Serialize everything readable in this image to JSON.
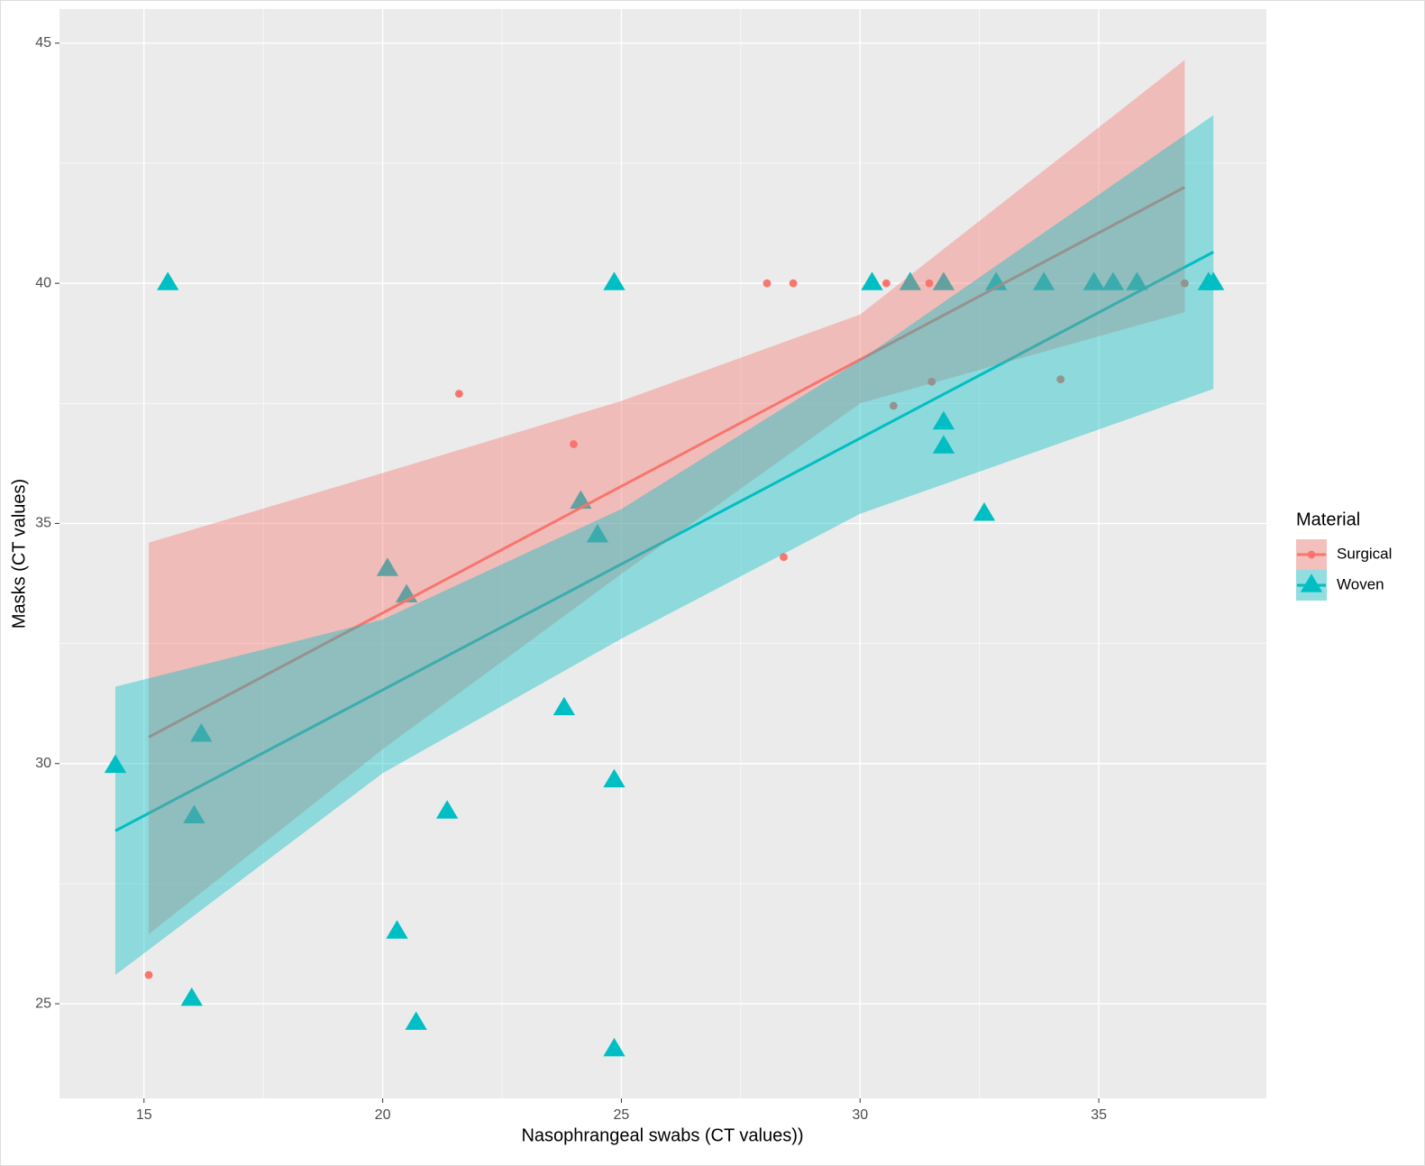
{
  "chart_data": {
    "type": "scatter",
    "x_label": "Nasophrangeal swabs (CT values))",
    "y_label": "Masks (CT values)",
    "legend_title": "Material",
    "legend": "right",
    "grid": true,
    "xlim": [
      13.23,
      38.51
    ],
    "ylim": [
      23.03,
      45.71
    ],
    "xticks": [
      15,
      20,
      25,
      30,
      35
    ],
    "yticks": [
      25,
      30,
      35,
      40,
      45
    ],
    "series": [
      {
        "name": "Surgical",
        "color": "#F8766D",
        "shape": "circle",
        "x": [
          15.1,
          21.6,
          24.0,
          28.05,
          28.6,
          28.4,
          30.55,
          31.45,
          31.75,
          30.7,
          31.5,
          34.2,
          36.8
        ],
        "y": [
          25.6,
          37.7,
          36.65,
          40,
          40,
          34.3,
          40,
          40,
          40,
          37.45,
          37.95,
          38.0,
          40
        ],
        "fit": {
          "x": [
            15.1,
            36.8
          ],
          "y": [
            30.55,
            42.0
          ]
        },
        "band": {
          "x": [
            15.1,
            20,
            25,
            30,
            36.8
          ],
          "lower": [
            26.45,
            30.3,
            33.95,
            37.5,
            39.4
          ],
          "upper": [
            34.6,
            36.05,
            37.55,
            39.35,
            44.65
          ]
        }
      },
      {
        "name": "Woven",
        "color": "#00BFC4",
        "shape": "triangle",
        "x": [
          14.4,
          15.5,
          16.2,
          16.05,
          16.0,
          20.1,
          20.5,
          20.3,
          20.7,
          21.35,
          23.8,
          24.15,
          24.5,
          24.85,
          24.85,
          24.85,
          30.25,
          31.05,
          31.75,
          31.75,
          31.75,
          32.6,
          32.85,
          33.85,
          34.9,
          35.3,
          35.8,
          37.3,
          37.4
        ],
        "y": [
          29.95,
          40,
          30.6,
          28.9,
          25.1,
          34.05,
          33.5,
          26.5,
          24.6,
          29.0,
          31.15,
          35.45,
          34.75,
          40,
          29.65,
          24.05,
          40,
          40,
          40,
          37.1,
          36.6,
          35.2,
          40,
          40,
          40,
          40,
          40,
          40,
          40
        ],
        "fit": {
          "x": [
            14.4,
            37.4
          ],
          "y": [
            28.6,
            40.65
          ]
        },
        "band": {
          "x": [
            14.4,
            20,
            25,
            30,
            37.4
          ],
          "lower": [
            25.6,
            29.8,
            32.6,
            35.2,
            37.8
          ],
          "upper": [
            31.6,
            33.0,
            35.3,
            38.4,
            43.5
          ]
        }
      }
    ]
  }
}
